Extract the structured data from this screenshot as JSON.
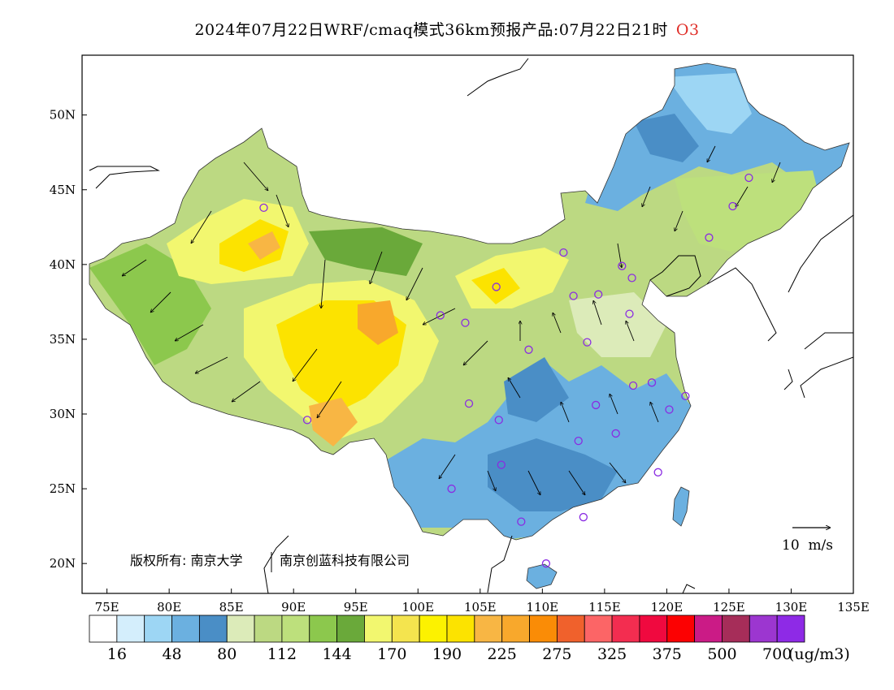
{
  "title": {
    "main": "2024年07月22日WRF/cmaq模式36km预报产品:07月22日21时",
    "species": "O3",
    "species_color": "#e0302a"
  },
  "map": {
    "lon_ticks": [
      "75E",
      "80E",
      "85E",
      "90E",
      "95E",
      "100E",
      "105E",
      "110E",
      "115E",
      "120E",
      "125E",
      "130E",
      "135E"
    ],
    "lat_ticks": [
      "50N",
      "45N",
      "40N",
      "35N",
      "30N",
      "25N",
      "20N"
    ],
    "lon_range": [
      73,
      135
    ],
    "lat_range": [
      18,
      54
    ],
    "copyright": [
      "版权所有: 南京大学",
      "南京创蓝科技有限公司"
    ],
    "wind_reference_label": "10  m/s",
    "land_color": "#ffffff",
    "coastline_color": "#000000"
  },
  "legend": {
    "colors": [
      "#ffffff",
      "#d4eefc",
      "#9dd6f4",
      "#6bb0e0",
      "#4a8ec6",
      "#dcebb9",
      "#bcd982",
      "#bde07c",
      "#8cc84d",
      "#6aa93a",
      "#f2f76f",
      "#f4e44e",
      "#fcf200",
      "#fce300",
      "#f8b644",
      "#f8a82c",
      "#fa8c06",
      "#f0612c",
      "#fc6566",
      "#f32d50",
      "#f0093f",
      "#fc0102",
      "#cb1b86",
      "#a62d59",
      "#9c36d0",
      "#8e2ae6"
    ],
    "labels": [
      "16",
      "48",
      "80",
      "112",
      "144",
      "170",
      "190",
      "225",
      "275",
      "325",
      "375",
      "500",
      "700"
    ],
    "unit": "(ug/m3)"
  },
  "stations": [
    {
      "lon": 87.6,
      "lat": 43.8
    },
    {
      "lon": 91.1,
      "lat": 29.6
    },
    {
      "lon": 101.8,
      "lat": 36.6
    },
    {
      "lon": 103.8,
      "lat": 36.1
    },
    {
      "lon": 106.3,
      "lat": 38.5
    },
    {
      "lon": 111.7,
      "lat": 40.8
    },
    {
      "lon": 112.5,
      "lat": 37.9
    },
    {
      "lon": 114.5,
      "lat": 38.0
    },
    {
      "lon": 116.4,
      "lat": 39.9
    },
    {
      "lon": 117.2,
      "lat": 39.1
    },
    {
      "lon": 117.0,
      "lat": 36.7
    },
    {
      "lon": 113.6,
      "lat": 34.8
    },
    {
      "lon": 108.9,
      "lat": 34.3
    },
    {
      "lon": 104.1,
      "lat": 30.7
    },
    {
      "lon": 106.5,
      "lat": 29.6
    },
    {
      "lon": 114.3,
      "lat": 30.6
    },
    {
      "lon": 117.3,
      "lat": 31.9
    },
    {
      "lon": 118.8,
      "lat": 32.1
    },
    {
      "lon": 121.5,
      "lat": 31.2
    },
    {
      "lon": 120.2,
      "lat": 30.3
    },
    {
      "lon": 112.9,
      "lat": 28.2
    },
    {
      "lon": 115.9,
      "lat": 28.7
    },
    {
      "lon": 119.3,
      "lat": 26.1
    },
    {
      "lon": 113.3,
      "lat": 23.1
    },
    {
      "lon": 108.3,
      "lat": 22.8
    },
    {
      "lon": 106.7,
      "lat": 26.6
    },
    {
      "lon": 102.7,
      "lat": 25.0
    },
    {
      "lon": 110.3,
      "lat": 20.0
    },
    {
      "lon": 123.4,
      "lat": 41.8
    },
    {
      "lon": 125.3,
      "lat": 43.9
    },
    {
      "lon": 126.6,
      "lat": 45.8
    }
  ]
}
